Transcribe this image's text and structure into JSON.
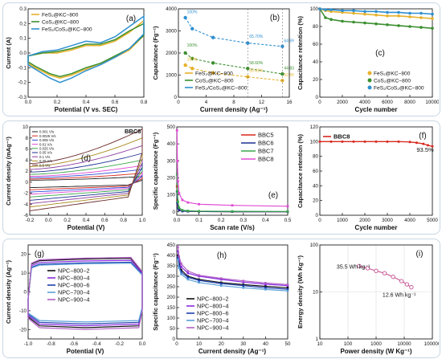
{
  "chart_data": [
    {
      "panel": "(a)",
      "type": "line",
      "xlabel": "Potential (V vs. SEC)",
      "ylabel": "Current (A)",
      "xlim": [
        0.0,
        0.8
      ],
      "ylim": [
        -0.3,
        0.3
      ],
      "xticks": [
        "0.0",
        "0.2",
        "0.4",
        "0.6",
        "0.8"
      ],
      "yticks": [
        "-0.3",
        "-0.2",
        "-0.1",
        "0.0",
        "0.1",
        "0.2",
        "0.3"
      ],
      "legend_position": "top-left",
      "series": [
        {
          "name": "FeS₂@KC−800",
          "color": "#e7b12a",
          "upper": [
            [
              0.0,
              -0.02
            ],
            [
              0.1,
              0.0
            ],
            [
              0.2,
              0.0
            ],
            [
              0.3,
              0.02
            ],
            [
              0.4,
              0.05
            ],
            [
              0.5,
              0.05
            ],
            [
              0.6,
              0.08
            ],
            [
              0.7,
              0.14
            ],
            [
              0.8,
              0.22
            ]
          ],
          "lower": [
            [
              0.8,
              0.12
            ],
            [
              0.7,
              0.02
            ],
            [
              0.6,
              -0.03
            ],
            [
              0.5,
              -0.07
            ],
            [
              0.4,
              -0.11
            ],
            [
              0.3,
              -0.15
            ],
            [
              0.22,
              -0.17
            ],
            [
              0.15,
              -0.15
            ],
            [
              0.05,
              -0.1
            ],
            [
              0.0,
              -0.07
            ]
          ]
        },
        {
          "name": "CoS₂@KC−800",
          "color": "#3b8f2f",
          "upper": [
            [
              0.0,
              -0.02
            ],
            [
              0.1,
              0.0
            ],
            [
              0.2,
              0.01
            ],
            [
              0.3,
              0.03
            ],
            [
              0.4,
              0.06
            ],
            [
              0.5,
              0.06
            ],
            [
              0.6,
              0.09
            ],
            [
              0.7,
              0.15
            ],
            [
              0.8,
              0.2
            ]
          ],
          "lower": [
            [
              0.8,
              0.12
            ],
            [
              0.7,
              0.03
            ],
            [
              0.6,
              -0.02
            ],
            [
              0.5,
              -0.07
            ],
            [
              0.4,
              -0.1
            ],
            [
              0.3,
              -0.14
            ],
            [
              0.22,
              -0.16
            ],
            [
              0.15,
              -0.14
            ],
            [
              0.05,
              -0.09
            ],
            [
              0.0,
              -0.06
            ]
          ]
        },
        {
          "name": "FeS₂/CoS₂@KC−800",
          "color": "#2e8fd0",
          "upper": [
            [
              0.0,
              -0.02
            ],
            [
              0.1,
              0.01
            ],
            [
              0.2,
              0.02
            ],
            [
              0.3,
              0.05
            ],
            [
              0.4,
              0.08
            ],
            [
              0.5,
              0.07
            ],
            [
              0.6,
              0.11
            ],
            [
              0.7,
              0.18
            ],
            [
              0.8,
              0.25
            ]
          ],
          "lower": [
            [
              0.8,
              0.13
            ],
            [
              0.7,
              0.03
            ],
            [
              0.6,
              -0.03
            ],
            [
              0.5,
              -0.08
            ],
            [
              0.4,
              -0.12
            ],
            [
              0.3,
              -0.17
            ],
            [
              0.22,
              -0.2
            ],
            [
              0.15,
              -0.17
            ],
            [
              0.05,
              -0.11
            ],
            [
              0.0,
              -0.08
            ]
          ]
        }
      ]
    },
    {
      "panel": "(b)",
      "type": "line",
      "xlabel": "Current density (Ag⁻¹)",
      "ylabel": "Capacitance (Fg⁻¹)",
      "xlim": [
        0,
        16
      ],
      "ylim": [
        0,
        4000
      ],
      "xticks": [
        "0",
        "4",
        "8",
        "12",
        "16"
      ],
      "yticks": [
        "0",
        "1000",
        "2000",
        "3000",
        "4000"
      ],
      "legend_position": "bottom-left",
      "x": [
        1,
        2,
        5,
        10,
        15
      ],
      "series": [
        {
          "name": "FeS₂@KC−800",
          "color": "#e7b12a",
          "values": [
            1450,
            1300,
            1100,
            920,
            750
          ]
        },
        {
          "name": "CoS₂@KC−800",
          "color": "#3b8f2f",
          "values": [
            2000,
            1750,
            1550,
            1300,
            1050
          ]
        },
        {
          "name": "FeS₂/CoS₂@KC−800",
          "color": "#2e8fd0",
          "values": [
            3600,
            3100,
            2700,
            2450,
            2300
          ]
        }
      ],
      "annotations": [
        "100%",
        "100%",
        "100%",
        "65.70%",
        "58.60%",
        "50.41%",
        "64.5%",
        "44.83%",
        "52.6%"
      ]
    },
    {
      "panel": "(c)",
      "type": "scatter",
      "xlabel": "Cycle number",
      "ylabel": "Capacitance retention (%)",
      "xlim": [
        0,
        10000
      ],
      "ylim": [
        0,
        100
      ],
      "xticks": [
        "0",
        "2000",
        "4000",
        "6000",
        "8000",
        "10000"
      ],
      "yticks": [
        "0",
        "20",
        "40",
        "60",
        "80",
        "100"
      ],
      "legend_position": "bottom-right",
      "x": [
        0,
        500,
        1000,
        2000,
        3000,
        4000,
        5000,
        6000,
        7000,
        8000,
        9000,
        10000
      ],
      "series": [
        {
          "name": "FeS₂@KC−800",
          "color": "#e7b12a",
          "values": [
            100,
            98,
            97,
            96,
            95,
            94,
            93,
            92,
            92,
            91,
            90,
            89
          ]
        },
        {
          "name": "CoS₂@KC−800",
          "color": "#3b8f2f",
          "values": [
            100,
            90,
            88,
            86,
            85,
            84,
            83,
            82,
            81,
            80,
            79,
            78
          ]
        },
        {
          "name": "FeS₂/CoS₂@KC−800",
          "color": "#2e8fd0",
          "values": [
            100,
            99,
            99,
            98,
            98,
            97,
            97,
            96,
            96,
            95,
            95,
            94
          ]
        }
      ]
    },
    {
      "panel": "(d)",
      "type": "line",
      "title": "BBC8",
      "xlabel": "Potential (V)",
      "ylabel": "Current density (mAg⁻¹)",
      "xlim": [
        -0.2,
        1.0
      ],
      "ylim": [
        -6,
        10
      ],
      "xticks": [
        "-0.2",
        "0.0",
        "0.2",
        "0.4",
        "0.6",
        "0.8",
        "1.0"
      ],
      "yticks": [
        "-6",
        "-4",
        "-2",
        "0",
        "2",
        "4",
        "6",
        "8",
        "10"
      ],
      "legend_position": "top-left",
      "legend": [
        "0.001 V/s",
        "0.0025 V/s",
        "0.005 V/s",
        "0.01 V/s",
        "0.025 V/s",
        "0.05 V/s",
        "0.1 V/s",
        "0.25 V/s",
        "0.5 V/s"
      ],
      "series": [
        {
          "color": "#222222",
          "upper": 1.0,
          "lower": -1.0
        },
        {
          "color": "#d8271c",
          "upper": 1.6,
          "lower": -1.4
        },
        {
          "color": "#2f4fd9",
          "upper": 2.3,
          "lower": -1.8
        },
        {
          "color": "#e04bd4",
          "upper": 3.0,
          "lower": -2.2
        },
        {
          "color": "#3aa64c",
          "upper": 4.0,
          "lower": -2.7
        },
        {
          "color": "#1a2f8f",
          "upper": 5.2,
          "lower": -3.3
        },
        {
          "color": "#8b3d9e",
          "upper": 6.6,
          "lower": -3.9
        },
        {
          "color": "#a88b20",
          "upper": 8.0,
          "lower": -4.5
        },
        {
          "color": "#6b2a2a",
          "upper": 9.6,
          "lower": -5.2
        }
      ]
    },
    {
      "panel": "(e)",
      "type": "line",
      "xlabel": "Scan rate (V/s)",
      "ylabel": "Specific capacitance (Fg⁻¹)",
      "xlim": [
        0,
        0.5
      ],
      "ylim": [
        -20,
        500
      ],
      "xticks": [
        "0.0",
        "0.1",
        "0.2",
        "0.3",
        "0.4",
        "0.5"
      ],
      "yticks": [
        "0",
        "100",
        "200",
        "300",
        "400",
        "500"
      ],
      "legend_position": "top-right",
      "x": [
        0.001,
        0.0025,
        0.005,
        0.01,
        0.025,
        0.05,
        0.1,
        0.25,
        0.5
      ],
      "series": [
        {
          "name": "BBC5",
          "color": "#d8271c",
          "values": [
            150,
            70,
            30,
            12,
            5,
            3,
            2,
            1,
            1
          ]
        },
        {
          "name": "BBC6",
          "color": "#1a2f8f",
          "values": [
            120,
            55,
            22,
            10,
            4,
            3,
            2,
            1,
            1
          ]
        },
        {
          "name": "BBC7",
          "color": "#3aa64c",
          "values": [
            220,
            120,
            60,
            25,
            10,
            6,
            4,
            3,
            2
          ]
        },
        {
          "name": "BBC8",
          "color": "#e04bd4",
          "values": [
            480,
            300,
            180,
            110,
            70,
            55,
            45,
            38,
            33
          ]
        }
      ]
    },
    {
      "panel": "(f)",
      "type": "line",
      "xlabel": "Cycle number",
      "ylabel": "Capacitance retention (%)",
      "xlim": [
        0,
        5000
      ],
      "ylim": [
        0,
        120
      ],
      "xticks": [
        "0",
        "1000",
        "2000",
        "3000",
        "4000",
        "5000"
      ],
      "yticks": [
        "0",
        "20",
        "40",
        "60",
        "80",
        "100",
        "120"
      ],
      "legend_position": "top-left",
      "annotation": "93.5%",
      "x": [
        0,
        500,
        1000,
        1500,
        2000,
        2500,
        3000,
        3500,
        4000,
        4300,
        4600,
        4800,
        5000
      ],
      "series": [
        {
          "name": "BBC8",
          "color": "#d8271c",
          "values": [
            100,
            100,
            100,
            100,
            100,
            100,
            100,
            100,
            99.5,
            98.5,
            97,
            95,
            93.5
          ]
        }
      ]
    },
    {
      "panel": "(g)",
      "type": "line",
      "xlabel": "Potential (V)",
      "ylabel": "Current density (Ag⁻¹)",
      "xlim": [
        -1.0,
        0.0
      ],
      "ylim": [
        -25,
        25
      ],
      "xticks": [
        "-1.0",
        "-0.8",
        "-0.6",
        "-0.4",
        "-0.2",
        "0.0"
      ],
      "yticks": [
        "-20",
        "-10",
        "0",
        "10",
        "20"
      ],
      "legend_position": "center",
      "series": [
        {
          "name": "NPC−800−2",
          "color": "#111111",
          "upper": 17.5,
          "lower": -19
        },
        {
          "name": "NPC−800−4",
          "color": "#8a2be2",
          "upper": 16.5,
          "lower": -18
        },
        {
          "name": "NPC−800−6",
          "color": "#1f3fae",
          "upper": 15.5,
          "lower": -17
        },
        {
          "name": "NPC−700−4",
          "color": "#5aa0d8",
          "upper": 15,
          "lower": -16
        },
        {
          "name": "NPC−900−4",
          "color": "#b05fc4",
          "upper": 18,
          "lower": -20
        }
      ]
    },
    {
      "panel": "(h)",
      "type": "line",
      "xlabel": "Current density (Ag⁻¹)",
      "ylabel": "Specific capacitance (Fg⁻¹)",
      "xlim": [
        0,
        50
      ],
      "ylim": [
        0,
        450
      ],
      "xticks": [
        "0",
        "10",
        "20",
        "30",
        "40",
        "50"
      ],
      "yticks": [
        "0",
        "50",
        "100",
        "150",
        "200",
        "250",
        "300",
        "350",
        "400",
        "450"
      ],
      "legend_position": "bottom-left",
      "x": [
        0.5,
        1,
        2,
        5,
        10,
        20,
        30,
        40,
        50
      ],
      "series": [
        {
          "name": "NPC−800−2",
          "color": "#111111",
          "values": [
            400,
            360,
            330,
            300,
            285,
            270,
            260,
            252,
            245
          ]
        },
        {
          "name": "NPC−800−4",
          "color": "#8a2be2",
          "values": [
            420,
            380,
            345,
            315,
            300,
            285,
            272,
            262,
            255
          ]
        },
        {
          "name": "NPC−800−6",
          "color": "#1f3fae",
          "values": [
            390,
            350,
            320,
            295,
            280,
            265,
            255,
            245,
            238
          ]
        },
        {
          "name": "NPC−700−4",
          "color": "#5aa0d8",
          "values": [
            380,
            340,
            310,
            285,
            270,
            255,
            245,
            237,
            230
          ]
        },
        {
          "name": "NPC−900−4",
          "color": "#b05fc4",
          "values": [
            440,
            395,
            360,
            325,
            305,
            290,
            278,
            268,
            260
          ]
        }
      ]
    },
    {
      "panel": "(i)",
      "type": "line",
      "xlabel": "Power density (W Kg⁻¹)",
      "ylabel": "Energy density (Wh Kg⁻¹)",
      "log_x": true,
      "log_y": true,
      "xlim": [
        10,
        100000
      ],
      "ylim": [
        1,
        100
      ],
      "xticks": [
        "10",
        "100",
        "1000",
        "10000",
        "100000"
      ],
      "yticks": [
        "1",
        "10",
        "100"
      ],
      "grid": true,
      "annotations": [
        "35.5 Wh kg⁻¹",
        "12.6 Wh kg⁻¹"
      ],
      "x": [
        250,
        500,
        1000,
        2000,
        4000,
        8000,
        12500,
        18000
      ],
      "series": [
        {
          "color": "#c8609a",
          "values": [
            35.5,
            32,
            28,
            25,
            21,
            17,
            14.5,
            12.6
          ]
        }
      ]
    }
  ]
}
